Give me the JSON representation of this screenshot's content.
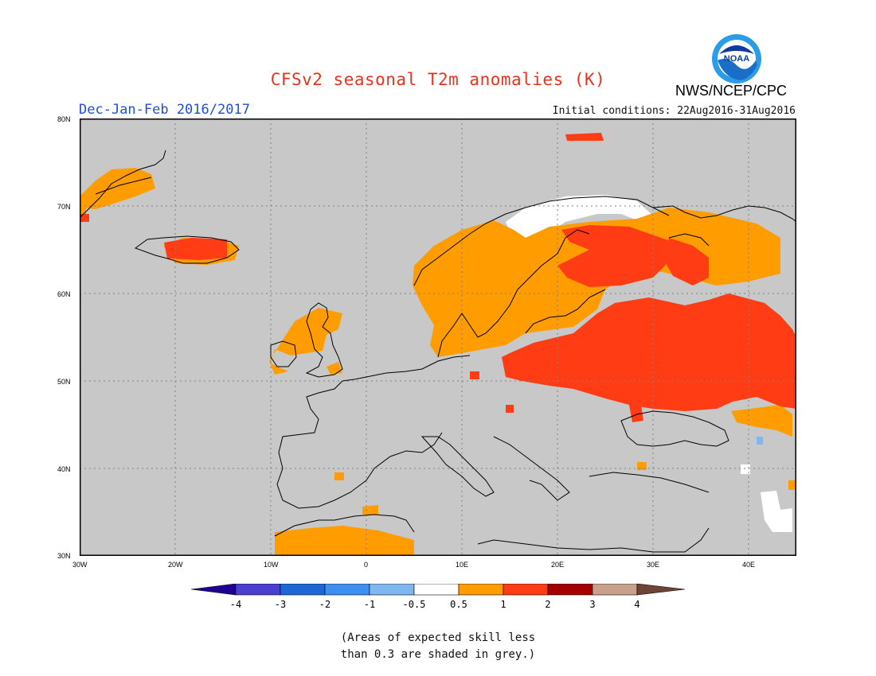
{
  "header": {
    "title": "CFSv2 seasonal T2m anomalies (K)",
    "agency": "NWS/NCEP/CPC",
    "season": "Dec-Jan-Feb 2016/2017",
    "initial_conditions": "Initial conditions: 22Aug2016-31Aug2016",
    "logo_text": "NOAA"
  },
  "map": {
    "projection": "equirectangular",
    "lon_range": [
      -30,
      45
    ],
    "lat_range": [
      30,
      80
    ],
    "background": "grey (low skill)",
    "lon_ticks": [
      "30W",
      "20W",
      "10W",
      "0",
      "10E",
      "20E",
      "30E",
      "40E"
    ],
    "lat_ticks": [
      "80N",
      "70N",
      "60N",
      "50N",
      "40N",
      "30N"
    ],
    "anomaly_regions": [
      {
        "category": "1 to 2",
        "region": "Eastern Europe / Western Russia"
      },
      {
        "category": "1 to 2",
        "region": "Finland / NW Russia"
      },
      {
        "category": "1 to 2",
        "region": "Iceland"
      },
      {
        "category": "0.5 to 1",
        "region": "Scandinavia"
      },
      {
        "category": "0.5 to 1",
        "region": "Northern Russia"
      },
      {
        "category": "0.5 to 1",
        "region": "Scotland / Ireland"
      },
      {
        "category": "0.5 to 1",
        "region": "Greenland coast"
      },
      {
        "category": "0.5 to 1",
        "region": "North Africa"
      },
      {
        "category": "0.5 to 1",
        "region": "Black Sea coast"
      },
      {
        "category": "-0.5 to 0.5",
        "region": "Northern Norway / Kola"
      },
      {
        "category": "-0.5 to 0.5",
        "region": "Levant / Syria"
      },
      {
        "category": "-1 to -0.5",
        "region": "Caucasus (small spot)"
      }
    ]
  },
  "colorbar": {
    "tick_labels": [
      "-4",
      "-3",
      "-2",
      "-1",
      "-0.5",
      "0.5",
      "1",
      "2",
      "3",
      "4"
    ],
    "colors": [
      "#1f0096",
      "#4a3fd0",
      "#1c66d6",
      "#3d8ff0",
      "#7fb8f0",
      "#ffffff",
      "#ff9c00",
      "#ff3c14",
      "#a50000",
      "#c8a08c",
      "#6e4436"
    ]
  },
  "note": {
    "line1": "(Areas of expected skill less",
    "line2": "than 0.3 are shaded in grey.)"
  },
  "colors": {
    "grey": "#c8c8c8",
    "orange": "#ff9c00",
    "red": "#ff3c14",
    "white": "#ffffff",
    "title": "#e8331c",
    "season": "#1f4fd8"
  }
}
